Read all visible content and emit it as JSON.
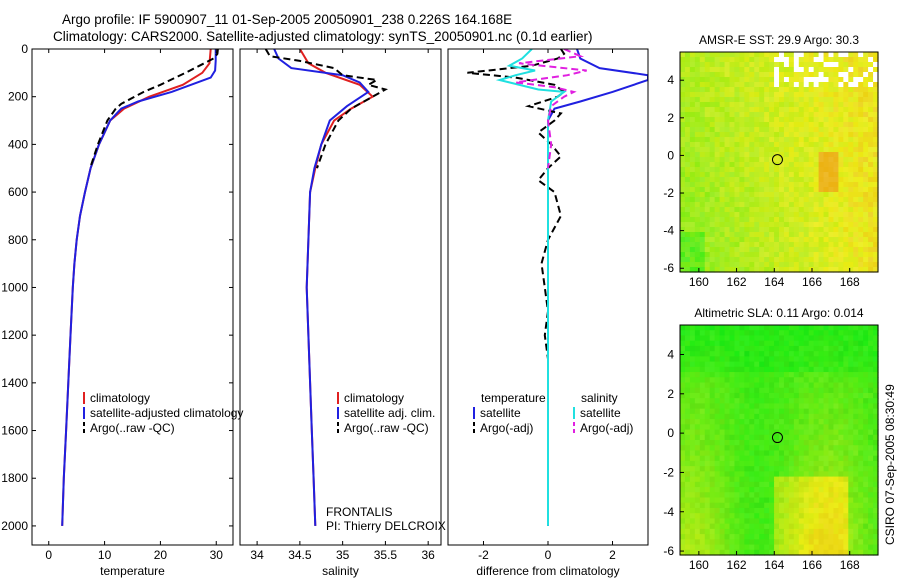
{
  "figure": {
    "title_line1": "Argo profile: IF 5900907_11 01-Sep-2005 20050901_238 0.226S 164.168E",
    "title_line2": "Climatology: CARS2000. Satellite-adjusted climatology: synTS_20050901.nc (0.1d earlier)",
    "side_note": "CSIRO 07-Sep-2005 08:30:49",
    "colors": {
      "climatology": "#e02020",
      "satellite": "#2020e0",
      "argo": "#000000",
      "sal_satellite": "#20e0e0",
      "sal_argo": "#e020e0"
    }
  },
  "chart_data": [
    {
      "type": "line",
      "xlabel": "temperature",
      "ylabel": "",
      "xlim": [
        -3,
        33
      ],
      "ylim": [
        2080,
        0
      ],
      "xticks": [
        0,
        10,
        20,
        30
      ],
      "yticks": [
        0,
        200,
        400,
        600,
        800,
        1000,
        1200,
        1400,
        1600,
        1800,
        2000
      ],
      "legend": [
        "climatology",
        "satellite-adjusted climatology",
        "Argo(..raw -QC)"
      ],
      "series": [
        {
          "name": "climatology",
          "style": "red",
          "points": [
            [
              29.0,
              0
            ],
            [
              28.8,
              60
            ],
            [
              27.5,
              100
            ],
            [
              24.0,
              150
            ],
            [
              18.0,
              200
            ],
            [
              13.5,
              250
            ],
            [
              11.0,
              300
            ],
            [
              9.0,
              400
            ],
            [
              7.5,
              500
            ],
            [
              6.5,
              600
            ],
            [
              5.6,
              700
            ],
            [
              5.0,
              800
            ],
            [
              4.6,
              900
            ],
            [
              4.3,
              1000
            ],
            [
              3.9,
              1200
            ],
            [
              3.5,
              1400
            ],
            [
              3.1,
              1600
            ],
            [
              2.7,
              1800
            ],
            [
              2.4,
              2000
            ]
          ]
        },
        {
          "name": "satellite-adjusted climatology",
          "style": "blue",
          "points": [
            [
              29.9,
              0
            ],
            [
              29.9,
              50
            ],
            [
              29.8,
              90
            ],
            [
              29.0,
              120
            ],
            [
              22.0,
              180
            ],
            [
              16.0,
              220
            ],
            [
              13.0,
              250
            ],
            [
              11.0,
              300
            ],
            [
              9.0,
              400
            ],
            [
              7.5,
              500
            ],
            [
              6.5,
              600
            ],
            [
              5.6,
              700
            ],
            [
              5.0,
              800
            ],
            [
              4.6,
              900
            ],
            [
              4.3,
              1000
            ],
            [
              3.9,
              1200
            ],
            [
              3.5,
              1400
            ],
            [
              3.1,
              1600
            ],
            [
              2.7,
              1800
            ],
            [
              2.4,
              2000
            ]
          ]
        },
        {
          "name": "Argo(..raw -QC)",
          "style": "black-dash",
          "points": [
            [
              30.3,
              0
            ],
            [
              30.2,
              20
            ],
            [
              29.5,
              40
            ],
            [
              27.0,
              70
            ],
            [
              24.5,
              100
            ],
            [
              20.0,
              150
            ],
            [
              17.0,
              180
            ],
            [
              13.0,
              230
            ],
            [
              12.0,
              250
            ],
            [
              10.5,
              300
            ],
            [
              8.8,
              400
            ],
            [
              7.4,
              500
            ]
          ]
        }
      ]
    },
    {
      "type": "line",
      "xlabel": "salinity",
      "ylabel": "",
      "xlim": [
        33.8,
        36.15
      ],
      "ylim": [
        2080,
        0
      ],
      "xticks": [
        34,
        34.5,
        35,
        35.5,
        36
      ],
      "xticklabels": [
        "34",
        "34.5",
        "35",
        "35.5",
        "36"
      ],
      "legend": [
        "climatology",
        "satellite adj. clim.",
        "Argo(..raw -QC)"
      ],
      "annotation": [
        "FRONTALIS",
        "PI: Thierry DELCROIX"
      ],
      "series": [
        {
          "name": "climatology",
          "style": "red",
          "points": [
            [
              34.5,
              0
            ],
            [
              34.6,
              60
            ],
            [
              34.8,
              100
            ],
            [
              35.2,
              150
            ],
            [
              35.35,
              200
            ],
            [
              35.1,
              250
            ],
            [
              34.9,
              300
            ],
            [
              34.75,
              400
            ],
            [
              34.68,
              500
            ],
            [
              34.62,
              600
            ],
            [
              34.6,
              800
            ],
            [
              34.58,
              1000
            ],
            [
              34.6,
              1200
            ],
            [
              34.62,
              1400
            ],
            [
              34.64,
              1600
            ],
            [
              34.66,
              1800
            ],
            [
              34.68,
              2000
            ]
          ]
        },
        {
          "name": "satellite adj. clim.",
          "style": "blue",
          "points": [
            [
              34.2,
              0
            ],
            [
              34.25,
              40
            ],
            [
              34.4,
              80
            ],
            [
              35.0,
              110
            ],
            [
              35.2,
              140
            ],
            [
              35.3,
              180
            ],
            [
              35.05,
              240
            ],
            [
              34.85,
              300
            ],
            [
              34.75,
              400
            ],
            [
              34.67,
              500
            ],
            [
              34.62,
              600
            ],
            [
              34.6,
              800
            ],
            [
              34.58,
              1000
            ],
            [
              34.6,
              1200
            ],
            [
              34.62,
              1400
            ],
            [
              34.64,
              1600
            ],
            [
              34.66,
              1800
            ],
            [
              34.68,
              2000
            ]
          ]
        },
        {
          "name": "Argo(..raw -QC)",
          "style": "black-dash",
          "points": [
            [
              34.1,
              0
            ],
            [
              34.15,
              30
            ],
            [
              34.5,
              50
            ],
            [
              34.9,
              80
            ],
            [
              35.0,
              110
            ],
            [
              35.4,
              130
            ],
            [
              35.3,
              150
            ],
            [
              35.5,
              170
            ],
            [
              35.35,
              200
            ],
            [
              35.1,
              250
            ],
            [
              34.95,
              300
            ],
            [
              34.8,
              400
            ],
            [
              34.7,
              500
            ]
          ]
        }
      ]
    },
    {
      "type": "line",
      "xlabel": "difference from climatology",
      "ylabel": "",
      "xlim": [
        -3.1,
        3.1
      ],
      "ylim": [
        2080,
        0
      ],
      "xticks": [
        -2,
        0,
        2
      ],
      "legend": [
        "temperature",
        "satellite",
        "Argo(-adj)",
        "salinity",
        "satellite",
        "Argo(-adj)"
      ],
      "series": [
        {
          "name": "temperature satellite",
          "style": "blue",
          "points": [
            [
              0.9,
              0
            ],
            [
              1.0,
              40
            ],
            [
              1.6,
              80
            ],
            [
              3.1,
              110
            ],
            [
              3.1,
              130
            ],
            [
              2.0,
              180
            ],
            [
              1.0,
              220
            ],
            [
              0.2,
              250
            ],
            [
              0.0,
              300
            ],
            [
              0.0,
              400
            ],
            [
              0.0,
              600
            ],
            [
              0.0,
              1000
            ],
            [
              0.0,
              2000
            ]
          ]
        },
        {
          "name": "temperature Argo(-adj)",
          "style": "black-dash",
          "points": [
            [
              0.4,
              0
            ],
            [
              0.5,
              20
            ],
            [
              0.3,
              40
            ],
            [
              -0.5,
              70
            ],
            [
              -2.5,
              100
            ],
            [
              -1.0,
              120
            ],
            [
              0.2,
              150
            ],
            [
              0.5,
              180
            ],
            [
              0.3,
              200
            ],
            [
              -0.6,
              240
            ],
            [
              0.4,
              270
            ],
            [
              0.2,
              300
            ],
            [
              -0.3,
              350
            ],
            [
              0.1,
              400
            ],
            [
              0.4,
              450
            ],
            [
              0.0,
              500
            ],
            [
              -0.3,
              550
            ],
            [
              0.2,
              600
            ],
            [
              0.4,
              700
            ],
            [
              0.0,
              800
            ],
            [
              -0.2,
              900
            ],
            [
              -0.1,
              1000
            ],
            [
              0.0,
              1100
            ],
            [
              -0.1,
              1200
            ],
            [
              0.0,
              1300
            ],
            [
              0.0,
              1500
            ]
          ]
        },
        {
          "name": "salinity satellite",
          "style": "cyan",
          "points": [
            [
              -0.5,
              0
            ],
            [
              -0.8,
              40
            ],
            [
              -1.2,
              70
            ],
            [
              -0.4,
              90
            ],
            [
              -1.0,
              110
            ],
            [
              -1.5,
              130
            ],
            [
              -0.3,
              170
            ],
            [
              0.5,
              180
            ],
            [
              0.1,
              220
            ],
            [
              0.0,
              300
            ],
            [
              0.0,
              500
            ],
            [
              0.0,
              1000
            ],
            [
              0.0,
              1500
            ],
            [
              0.0,
              2000
            ]
          ]
        },
        {
          "name": "salinity Argo(-adj)",
          "style": "magenta-dash",
          "points": [
            [
              0.5,
              0
            ],
            [
              1.0,
              30
            ],
            [
              -0.9,
              60
            ],
            [
              1.2,
              90
            ],
            [
              0.6,
              110
            ],
            [
              -1.0,
              140
            ],
            [
              0.2,
              160
            ],
            [
              0.8,
              180
            ],
            [
              0.5,
              200
            ],
            [
              0.1,
              240
            ],
            [
              0.0,
              300
            ],
            [
              0.1,
              400
            ],
            [
              0.0,
              500
            ]
          ]
        }
      ]
    },
    {
      "type": "heatmap",
      "title": "AMSR-E SST: 29.9 Argo: 30.3",
      "xlim": [
        159,
        169.5
      ],
      "ylim": [
        -6.2,
        5.5
      ],
      "xticks": [
        160,
        162,
        164,
        166,
        168
      ],
      "yticks": [
        -6,
        -4,
        -2,
        0,
        2,
        4
      ],
      "marker": [
        164.168,
        -0.226
      ]
    },
    {
      "type": "heatmap",
      "title": "Altimetric SLA: 0.11 Argo: 0.014",
      "xlim": [
        159,
        169.5
      ],
      "ylim": [
        -6.2,
        5.5
      ],
      "xticks": [
        160,
        162,
        164,
        166,
        168
      ],
      "yticks": [
        -6,
        -4,
        -2,
        0,
        2,
        4
      ],
      "marker": [
        164.168,
        -0.226
      ]
    }
  ]
}
